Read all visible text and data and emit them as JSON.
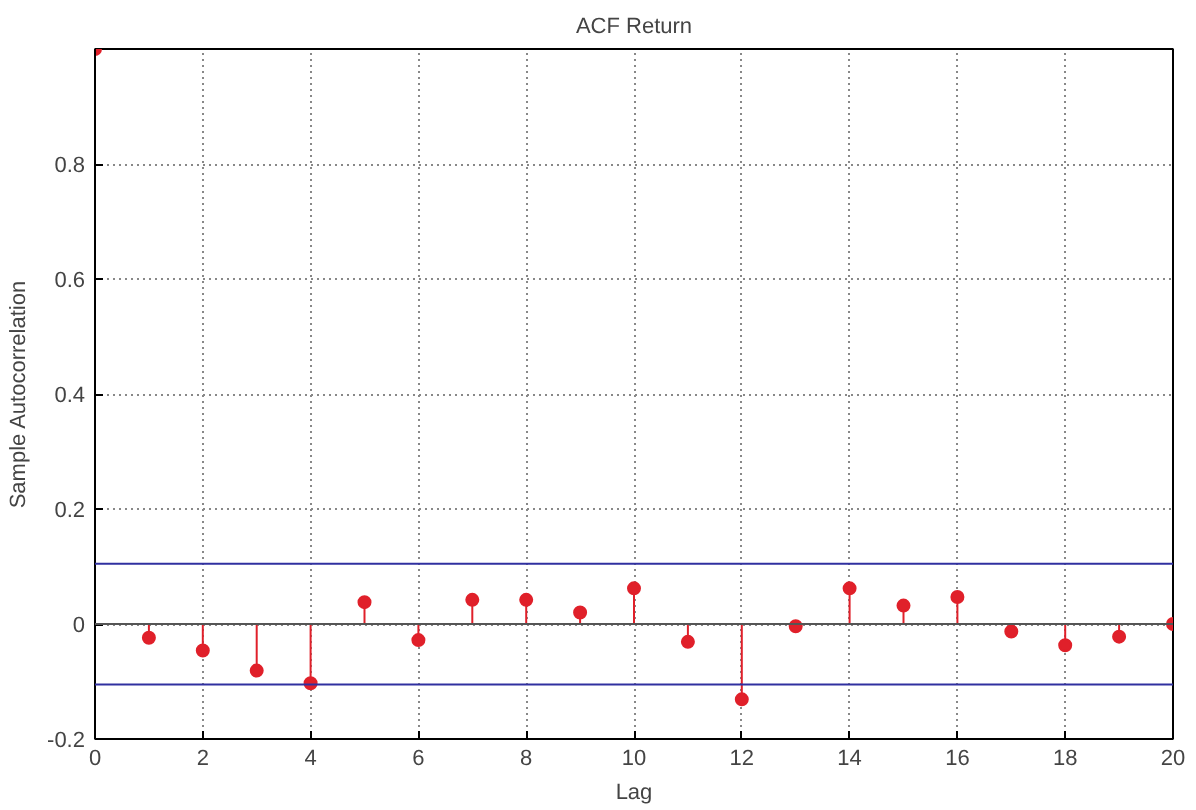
{
  "chart_data": {
    "type": "lollipop",
    "title": "ACF Return",
    "xlabel": "Lag",
    "ylabel": "Sample Autocorrelation",
    "x": [
      0,
      1,
      2,
      3,
      4,
      5,
      6,
      7,
      8,
      9,
      10,
      11,
      12,
      13,
      14,
      15,
      16,
      17,
      18,
      19,
      20
    ],
    "series": [
      {
        "color": "#e0202a",
        "values": [
          1.0,
          -0.024,
          -0.046,
          -0.081,
          -0.103,
          0.038,
          -0.028,
          0.042,
          0.042,
          0.02,
          0.062,
          -0.031,
          -0.131,
          -0.004,
          0.062,
          0.032,
          0.047,
          -0.013,
          -0.037,
          -0.022,
          0.0
        ]
      }
    ],
    "xlim": [
      0,
      20
    ],
    "ylim": [
      -0.2,
      1.0
    ],
    "xticks": [
      0,
      2,
      4,
      6,
      8,
      10,
      12,
      14,
      16,
      18,
      20
    ],
    "yticks": [
      -0.2,
      0,
      0.2,
      0.4,
      0.6,
      0.8
    ],
    "ref_lines": [
      {
        "axis": "y",
        "value": 0.105,
        "label": null,
        "color": "#3030a0"
      },
      {
        "axis": "y",
        "value": -0.105,
        "label": null,
        "color": "#3030a0"
      }
    ],
    "grid": true,
    "marker": "circle"
  }
}
